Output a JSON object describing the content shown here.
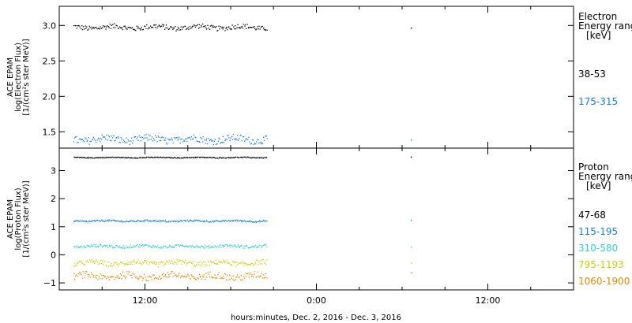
{
  "chart_data": {
    "type": "scatter",
    "x_axis": {
      "label": "hours:minutes, Dec.  2, 2016 - Dec.  3, 2016",
      "range_hours": [
        6,
        42
      ],
      "ticks": [
        {
          "hour": 12,
          "label": "12:00"
        },
        {
          "hour": 24,
          "label": "0:00"
        },
        {
          "hour": 36,
          "label": "12:00"
        }
      ]
    },
    "panels": [
      {
        "id": "electron",
        "ylabel": [
          "ACE EPAM",
          "log(Electron Flux)",
          "[1/(cm²s ster MeV)]"
        ],
        "ylim": [
          1.27,
          3.27
        ],
        "yticks": [
          {
            "v": 1.5,
            "label": "1.5"
          },
          {
            "v": 2.0,
            "label": "2.0"
          },
          {
            "v": 2.5,
            "label": "2.5"
          },
          {
            "v": 3.0,
            "label": "3.0"
          }
        ],
        "legend_title": [
          "Electron",
          "Energy range",
          "[keV]"
        ],
        "series": [
          {
            "name": "38-53",
            "color": "#000000",
            "base": 2.98,
            "noise": 0.035,
            "x_end": 20.5,
            "late_point": [
              30.6,
              2.97
            ]
          },
          {
            "name": "175-315",
            "color": "#1a7fd4",
            "base": 1.4,
            "noise": 0.05,
            "x_end": 20.5,
            "late_point": [
              30.6,
              1.39
            ]
          }
        ]
      },
      {
        "id": "proton",
        "ylabel": [
          "ACE EPAM",
          "log(Proton Flux)",
          "[1/(cm²s ster MeV)]"
        ],
        "ylim": [
          -1.25,
          3.8
        ],
        "yticks": [
          {
            "v": -1,
            "label": "−1"
          },
          {
            "v": 0,
            "label": "0"
          },
          {
            "v": 1,
            "label": "1"
          },
          {
            "v": 2,
            "label": "2"
          },
          {
            "v": 3,
            "label": "3"
          }
        ],
        "legend_title": [
          "Proton",
          "Energy range",
          "[keV]"
        ],
        "series": [
          {
            "name": "47-68",
            "color": "#000000",
            "base": 3.48,
            "noise": 0.015,
            "x_end": 20.5,
            "late_point": [
              30.6,
              3.5
            ]
          },
          {
            "name": "115-195",
            "color": "#1a7fd4",
            "base": 1.22,
            "noise": 0.03,
            "x_end": 20.5,
            "late_point": [
              30.6,
              1.25
            ]
          },
          {
            "name": "310-580",
            "color": "#2fd0d0",
            "base": 0.32,
            "noise": 0.05,
            "x_end": 20.5,
            "late_point": [
              30.6,
              0.3
            ]
          },
          {
            "name": "795-1193",
            "color": "#c8d400",
            "base": -0.28,
            "noise": 0.09,
            "x_end": 20.5,
            "late_point": [
              30.6,
              -0.28
            ]
          },
          {
            "name": "1060-1900",
            "color": "#e08a00",
            "base": -0.75,
            "noise": 0.12,
            "x_end": 20.5,
            "late_point": [
              30.6,
              -0.62
            ]
          }
        ]
      }
    ]
  }
}
